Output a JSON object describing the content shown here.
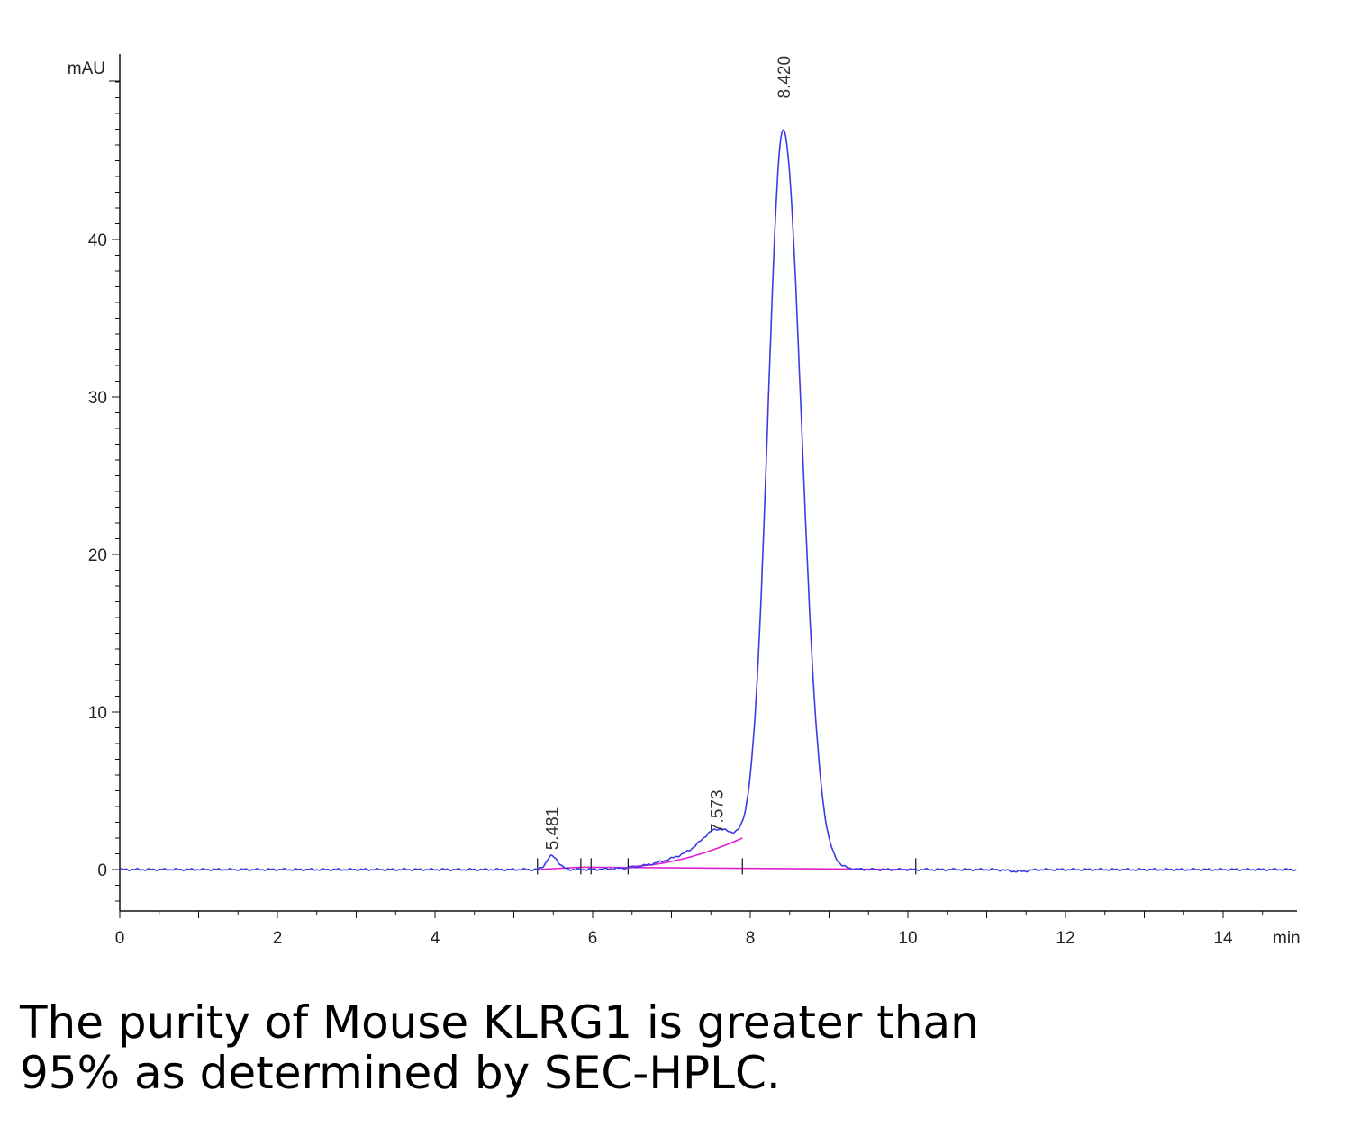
{
  "chart_data": {
    "type": "line",
    "ylabel": "mAU",
    "xlabel": "min",
    "xlim": [
      0,
      15
    ],
    "ylim": [
      -2.5,
      52
    ],
    "x_ticks": [
      0,
      2,
      4,
      6,
      8,
      10,
      12,
      14
    ],
    "y_ticks": [
      0,
      10,
      20,
      30,
      40
    ],
    "grid": false,
    "colors": {
      "trace": "#3a3ae6",
      "baseline": "#e020d0",
      "axis": "#111111"
    },
    "series": [
      {
        "kind": "chromatogram",
        "peaks": [
          {
            "rt": 5.481,
            "height": 0.85,
            "width": 0.07
          },
          {
            "rt": 7.573,
            "height": 1.0,
            "width": 0.18
          },
          {
            "rt": 8.42,
            "height": 46.3,
            "width": 0.205
          }
        ]
      }
    ],
    "peak_labels": [
      {
        "text": "5.481",
        "x": 5.481,
        "y": 0.9
      },
      {
        "text": "7.573",
        "x": 7.573,
        "y": 2.0
      },
      {
        "text": "8.420",
        "x": 8.42,
        "y": 48.6
      }
    ],
    "integration_baselines": [
      {
        "x": [
          5.3,
          5.85
        ],
        "y": [
          0.0,
          0.15
        ]
      },
      {
        "x": [
          5.85,
          10.1
        ],
        "y": [
          0.15,
          0.0
        ]
      },
      {
        "x": [
          6.45,
          7.9
        ],
        "y": [
          0.2,
          2.0
        ]
      }
    ],
    "integration_marks": [
      5.3,
      5.85,
      5.98,
      6.45,
      7.9,
      10.1
    ]
  },
  "caption": {
    "line1": "The purity of Mouse KLRG1 is greater than",
    "line2": "95% as determined by SEC-HPLC."
  }
}
